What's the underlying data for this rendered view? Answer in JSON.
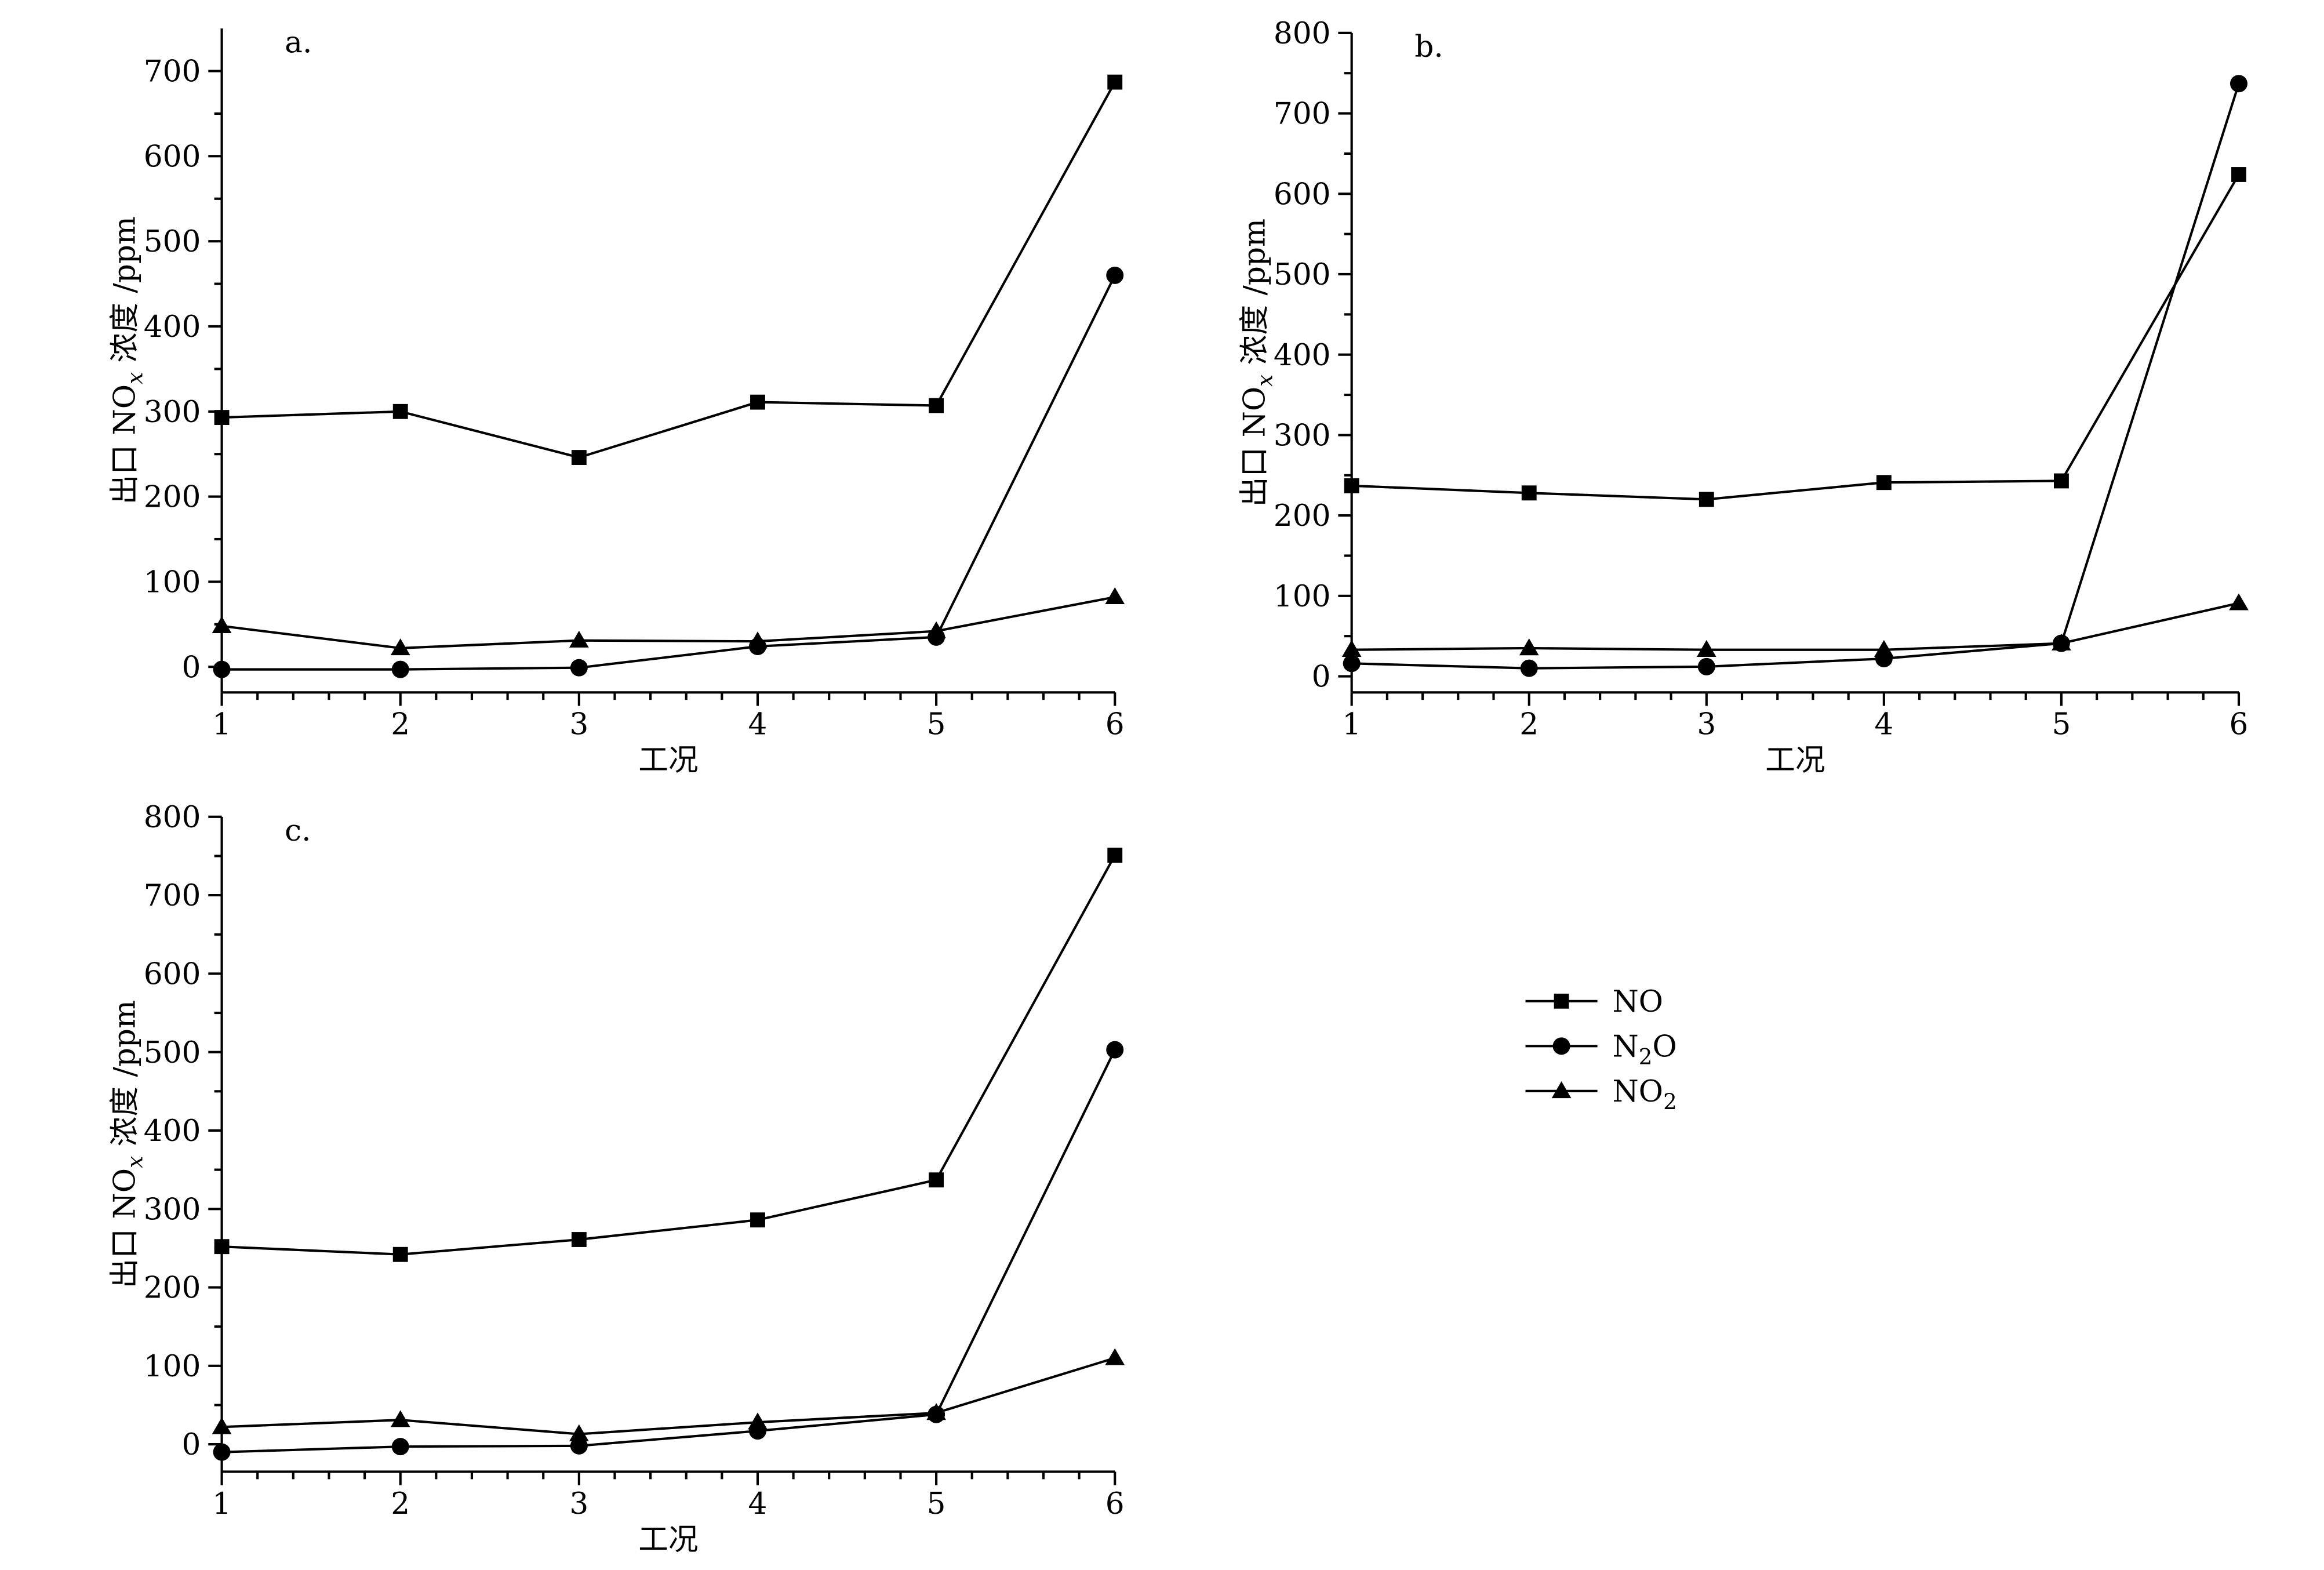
{
  "chart_data": [
    {
      "type": "line",
      "panel_label": "a.",
      "xlabel": "工况",
      "ylabel": {
        "prefix": "出口 NO",
        "sub": "x",
        "suffix": " 浓度 /ppm"
      },
      "x": [
        1,
        2,
        3,
        4,
        5,
        6
      ],
      "xticks": [
        "1",
        "2",
        "3",
        "4",
        "5",
        "6"
      ],
      "ylim": [
        -30,
        750
      ],
      "yticks": [
        0,
        100,
        200,
        300,
        400,
        500,
        600,
        700
      ],
      "series": [
        {
          "name": "NO",
          "marker": "square",
          "values": [
            293,
            300,
            246,
            311,
            307,
            687
          ]
        },
        {
          "name": "N2O",
          "marker": "circle",
          "values": [
            -3,
            -3,
            -1,
            24,
            35,
            460
          ]
        },
        {
          "name": "NO2",
          "marker": "triangle",
          "values": [
            48,
            22,
            31,
            30,
            42,
            82
          ]
        }
      ]
    },
    {
      "type": "line",
      "panel_label": "b.",
      "xlabel": "工况",
      "ylabel": {
        "prefix": "出口 NO",
        "sub": "x",
        "suffix": " 浓度 /ppm"
      },
      "x": [
        1,
        2,
        3,
        4,
        5,
        6
      ],
      "xticks": [
        "1",
        "2",
        "3",
        "4",
        "5",
        "6"
      ],
      "ylim": [
        -20,
        800
      ],
      "yticks": [
        0,
        100,
        200,
        300,
        400,
        500,
        600,
        700,
        800
      ],
      "series": [
        {
          "name": "NO",
          "marker": "square",
          "values": [
            237,
            228,
            220,
            241,
            243,
            624
          ]
        },
        {
          "name": "N2O",
          "marker": "circle",
          "values": [
            16,
            10,
            12,
            22,
            41,
            737
          ]
        },
        {
          "name": "NO2",
          "marker": "triangle",
          "values": [
            33,
            35,
            33,
            33,
            41,
            91
          ]
        }
      ]
    },
    {
      "type": "line",
      "panel_label": "c.",
      "xlabel": "工况",
      "ylabel": {
        "prefix": "出口 NO",
        "sub": "x",
        "suffix": " 浓度 /ppm"
      },
      "x": [
        1,
        2,
        3,
        4,
        5,
        6
      ],
      "xticks": [
        "1",
        "2",
        "3",
        "4",
        "5",
        "6"
      ],
      "ylim": [
        -35,
        800
      ],
      "yticks": [
        0,
        100,
        200,
        300,
        400,
        500,
        600,
        700,
        800
      ],
      "series": [
        {
          "name": "NO",
          "marker": "square",
          "values": [
            252,
            242,
            261,
            286,
            337,
            751
          ]
        },
        {
          "name": "N2O",
          "marker": "circle",
          "values": [
            -10,
            -3,
            -2,
            17,
            38,
            503
          ]
        },
        {
          "name": "NO2",
          "marker": "triangle",
          "values": [
            22,
            31,
            13,
            28,
            40,
            110
          ]
        }
      ]
    }
  ],
  "legend": {
    "items": [
      {
        "marker": "square",
        "text": "NO",
        "base": "NO",
        "sub": "",
        "tail": ""
      },
      {
        "marker": "circle",
        "text": "N2O",
        "base": "N",
        "sub": "2",
        "tail": "O"
      },
      {
        "marker": "triangle",
        "text": "NO2",
        "base": "NO",
        "sub": "2",
        "tail": ""
      }
    ]
  }
}
